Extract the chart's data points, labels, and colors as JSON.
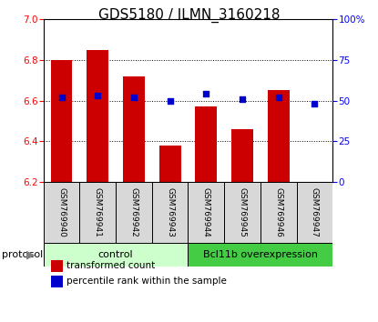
{
  "title": "GDS5180 / ILMN_3160218",
  "samples": [
    "GSM769940",
    "GSM769941",
    "GSM769942",
    "GSM769943",
    "GSM769944",
    "GSM769945",
    "GSM769946",
    "GSM769947"
  ],
  "red_values": [
    6.8,
    6.85,
    6.72,
    6.38,
    6.57,
    6.46,
    6.65,
    6.2
  ],
  "blue_values_pct": [
    52,
    53,
    52,
    50,
    54,
    51,
    52,
    48
  ],
  "ylim_left": [
    6.2,
    7.0
  ],
  "ylim_right": [
    0,
    100
  ],
  "yticks_left": [
    6.2,
    6.4,
    6.6,
    6.8,
    7.0
  ],
  "yticks_right": [
    0,
    25,
    50,
    75,
    100
  ],
  "bar_bottom": 6.2,
  "bar_color": "#cc0000",
  "dot_color": "#0000cc",
  "control_label": "control",
  "overexp_label": "Bcl11b overexpression",
  "protocol_label": "protocol",
  "legend_red": "transformed count",
  "legend_blue": "percentile rank within the sample",
  "control_color": "#ccffcc",
  "overexp_color": "#44cc44",
  "tick_label_bg": "#d8d8d8",
  "title_fontsize": 11,
  "bar_width": 0.6,
  "n_control": 4,
  "n_overexp": 4
}
